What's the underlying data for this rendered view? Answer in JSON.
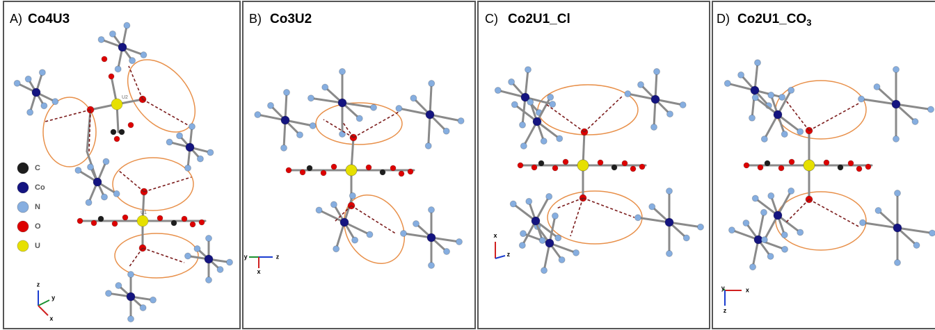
{
  "panels": [
    {
      "letter": "A)",
      "title": "Co4U3",
      "atom_labels": [
        "U2",
        "U1"
      ],
      "axes": [
        "z",
        "y",
        "x"
      ]
    },
    {
      "letter": "B)",
      "title": "Co3U2",
      "axes": [
        "y",
        "z",
        "x"
      ]
    },
    {
      "letter": "C)",
      "title": "Co2U1_Cl",
      "axes": [
        "x",
        "z"
      ]
    },
    {
      "letter": "D)",
      "title": "Co2U1_CO",
      "title_subscript": "3",
      "axes": [
        "x",
        "y",
        "z"
      ]
    }
  ],
  "legend": [
    "C",
    "Co",
    "N",
    "O",
    "U"
  ]
}
